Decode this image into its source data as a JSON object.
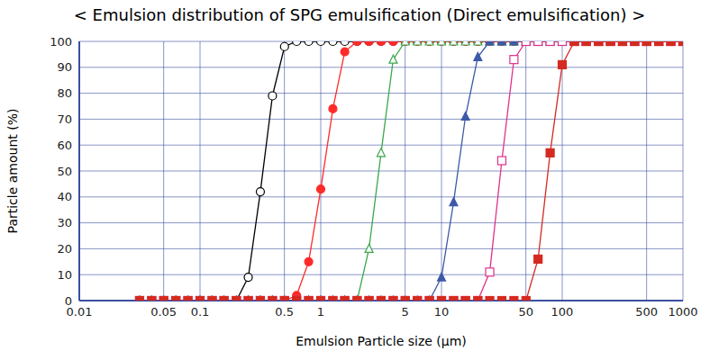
{
  "chart_data": {
    "type": "line",
    "title": "< Emulsion distribution of SPG emulsification (Direct emulsification) >",
    "xlabel": "Emulsion Particle size (μm)",
    "ylabel": "Particle amount (%)",
    "log": "x",
    "grid": true,
    "xlim": [
      0.01,
      1000
    ],
    "xticks": [
      0.01,
      0.05,
      0.1,
      0.5,
      1,
      5,
      10,
      50,
      100,
      500,
      1000
    ],
    "ylim": [
      0,
      100
    ],
    "yticks": [
      0,
      10,
      20,
      30,
      40,
      50,
      60,
      70,
      80,
      90,
      100
    ],
    "x": [
      0.0316,
      0.0398,
      0.0501,
      0.0631,
      0.0794,
      0.1,
      0.126,
      0.158,
      0.2,
      0.251,
      0.316,
      0.398,
      0.501,
      0.631,
      0.794,
      1,
      1.26,
      1.58,
      2.0,
      2.51,
      3.16,
      3.98,
      5.01,
      6.31,
      7.94,
      10,
      12.6,
      15.8,
      20,
      25.1,
      31.6,
      39.8,
      50.1,
      63.1,
      79.4,
      100,
      126,
      158,
      200,
      251,
      316,
      398,
      501,
      631,
      794,
      1000
    ],
    "series": [
      {
        "color": "#000000",
        "marker": "circle_open",
        "values": [
          0,
          0,
          0,
          0,
          0,
          0,
          0,
          0,
          0,
          9,
          42,
          79,
          98,
          100,
          100,
          100,
          100,
          100,
          100,
          100,
          100,
          100,
          100,
          100,
          100,
          100,
          100,
          100,
          100,
          100,
          100,
          100,
          100,
          100,
          100,
          100,
          100,
          100,
          100,
          100,
          100,
          100,
          100,
          100,
          100,
          100
        ]
      },
      {
        "color": "#ff2a2a",
        "marker": "circle",
        "values": [
          0,
          0,
          0,
          0,
          0,
          0,
          0,
          0,
          0,
          0,
          0,
          0,
          0,
          2,
          15,
          43,
          74,
          96,
          100,
          100,
          100,
          100,
          100,
          100,
          100,
          100,
          100,
          100,
          100,
          100,
          100,
          100,
          100,
          100,
          100,
          100,
          100,
          100,
          100,
          100,
          100,
          100,
          100,
          100,
          100,
          100
        ]
      },
      {
        "color": "#3aa84a",
        "marker": "triangle_open",
        "values": [
          0,
          0,
          0,
          0,
          0,
          0,
          0,
          0,
          0,
          0,
          0,
          0,
          0,
          0,
          0,
          0,
          0,
          0,
          0,
          20,
          57,
          93,
          100,
          100,
          100,
          100,
          100,
          100,
          100,
          100,
          100,
          100,
          100,
          100,
          100,
          100,
          100,
          100,
          100,
          100,
          100,
          100,
          100,
          100,
          100,
          100
        ]
      },
      {
        "color": "#3c5aa8",
        "marker": "triangle",
        "values": [
          0,
          0,
          0,
          0,
          0,
          0,
          0,
          0,
          0,
          0,
          0,
          0,
          0,
          0,
          0,
          0,
          0,
          0,
          0,
          0,
          0,
          0,
          0,
          0,
          0,
          9,
          38,
          71,
          94,
          100,
          100,
          100,
          100,
          100,
          100,
          100,
          100,
          100,
          100,
          100,
          100,
          100,
          100,
          100,
          100,
          100
        ]
      },
      {
        "color": "#e0308a",
        "marker": "square_open",
        "values": [
          0,
          0,
          0,
          0,
          0,
          0,
          0,
          0,
          0,
          0,
          0,
          0,
          0,
          0,
          0,
          0,
          0,
          0,
          0,
          0,
          0,
          0,
          0,
          0,
          0,
          0,
          0,
          0,
          0,
          11,
          54,
          93,
          100,
          100,
          100,
          100,
          100,
          100,
          100,
          100,
          100,
          100,
          100,
          100,
          100,
          100
        ]
      },
      {
        "color": "#d42a20",
        "marker": "square",
        "values": [
          0,
          0,
          0,
          0,
          0,
          0,
          0,
          0,
          0,
          0,
          0,
          0,
          0,
          0,
          0,
          0,
          0,
          0,
          0,
          0,
          0,
          0,
          0,
          0,
          0,
          0,
          0,
          0,
          0,
          0,
          0,
          0,
          0,
          16,
          57,
          91,
          100,
          100,
          100,
          100,
          100,
          100,
          100,
          100,
          100,
          100
        ]
      }
    ]
  }
}
